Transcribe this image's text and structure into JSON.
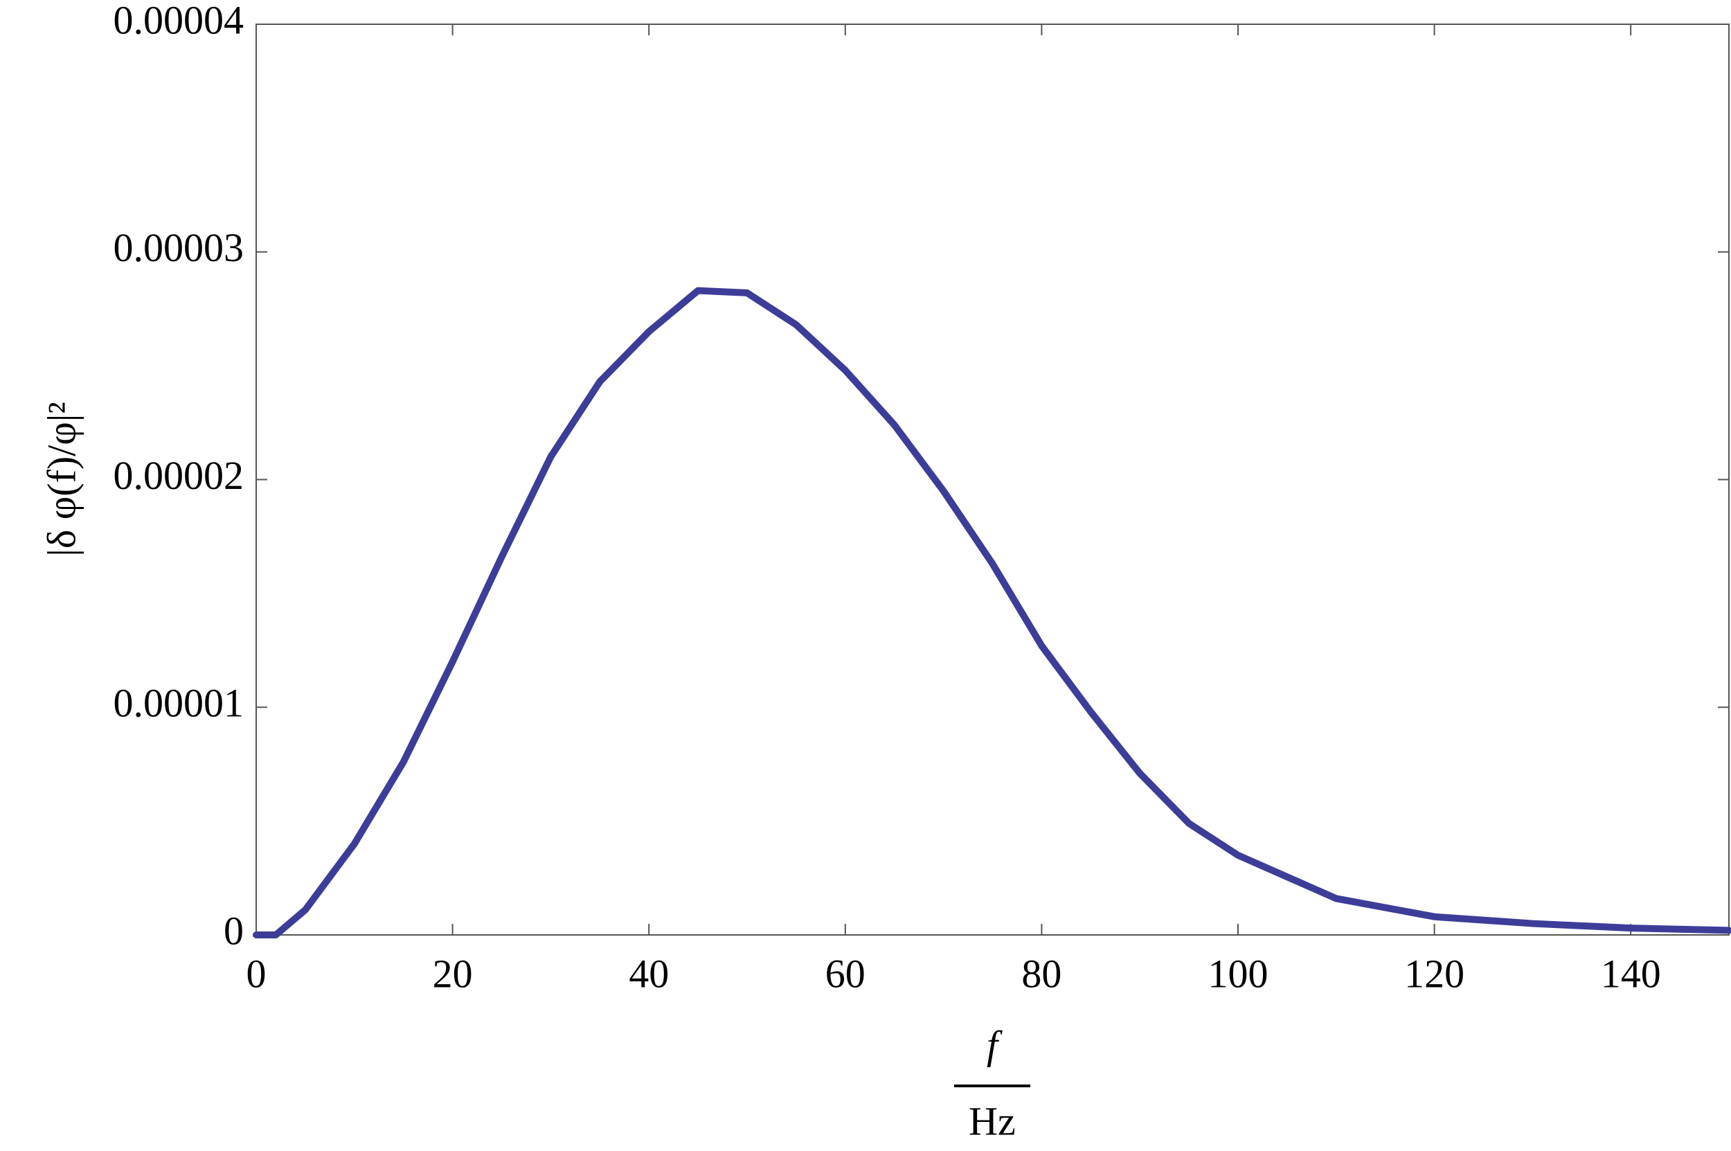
{
  "chart_data": {
    "type": "line",
    "y_label": "|δ φ(f)/φ|²",
    "x_label_numerator": "f",
    "x_label_denominator": "Hz",
    "x": [
      0,
      2,
      5,
      10,
      15,
      20,
      25,
      30,
      35,
      40,
      45,
      50,
      55,
      60,
      65,
      70,
      75,
      80,
      85,
      90,
      95,
      100,
      110,
      120,
      130,
      140,
      150
    ],
    "series": [
      {
        "color": "#3d3d99",
        "values": [
          0,
          0,
          1.1e-06,
          4e-06,
          7.6e-06,
          1.2e-05,
          1.66e-05,
          2.1e-05,
          2.43e-05,
          2.65e-05,
          2.83e-05,
          2.82e-05,
          2.68e-05,
          2.48e-05,
          2.24e-05,
          1.95e-05,
          1.63e-05,
          1.27e-05,
          9.8e-06,
          7.1e-06,
          4.9e-06,
          3.5e-06,
          1.6e-06,
          8e-07,
          5e-07,
          3e-07,
          2e-07
        ]
      }
    ],
    "xlim": [
      0,
      150
    ],
    "xticks": [
      0,
      20,
      40,
      60,
      80,
      100,
      120,
      140
    ],
    "ylim": [
      0,
      4e-05
    ],
    "yticks": [
      0,
      1e-05,
      2e-05,
      3e-05,
      4e-05
    ]
  }
}
